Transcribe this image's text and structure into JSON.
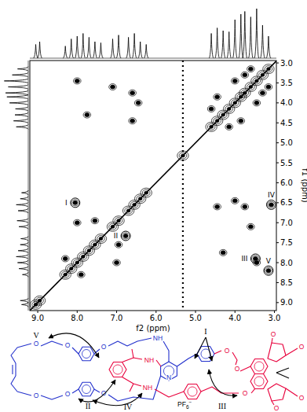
{
  "chart_data": {
    "type": "contour",
    "x_label": "f2 (ppm)",
    "y_label": "f1 (ppm)",
    "xlim": [
      9.2,
      2.95
    ],
    "ylim": [
      2.94,
      9.2
    ],
    "xticks": [
      {
        "value": 9,
        "label": "9.0"
      },
      {
        "value": 8,
        "label": "8.0"
      },
      {
        "value": 7,
        "label": "7.0"
      },
      {
        "value": 6,
        "label": "6.0"
      },
      {
        "value": 5,
        "label": "5.0"
      },
      {
        "value": 4,
        "label": "4.0"
      },
      {
        "value": 3,
        "label": "3.0"
      }
    ],
    "yticks": [
      {
        "value": 3,
        "label": "3.0"
      },
      3.5,
      {
        "value": 4,
        "label": "4.0"
      },
      4.5,
      {
        "value": 5,
        "label": "5.0"
      },
      5.5,
      {
        "value": 6,
        "label": "6.0"
      },
      6.5,
      {
        "value": 7,
        "label": "7.0"
      },
      7.5,
      {
        "value": 8,
        "label": "8.0"
      },
      8.5,
      {
        "value": 9,
        "label": "9.0"
      }
    ],
    "projection": {
      "ppm": [
        9.05,
        8.95,
        8.3,
        8.15,
        8.0,
        7.85,
        7.7,
        7.55,
        7.4,
        7.1,
        6.95,
        6.7,
        6.55,
        6.4,
        6.25,
        4.6,
        4.45,
        4.3,
        4.15,
        4.0,
        3.85,
        3.75,
        3.6,
        3.45,
        3.3,
        3.15
      ],
      "intensity": [
        25,
        30,
        22,
        35,
        40,
        45,
        38,
        30,
        28,
        35,
        42,
        38,
        45,
        30,
        25,
        45,
        55,
        50,
        48,
        70,
        80,
        85,
        75,
        90,
        60,
        40
      ]
    },
    "diagonal_peaks": [
      9.05,
      8.95,
      8.3,
      8.15,
      8.0,
      7.85,
      7.7,
      7.55,
      7.4,
      7.1,
      6.95,
      6.7,
      6.55,
      6.4,
      6.25,
      5.32,
      4.6,
      4.45,
      4.3,
      4.15,
      4.0,
      3.85,
      3.75,
      3.6,
      3.45,
      3.3,
      3.15
    ],
    "cross_peaks": {
      "f2": [
        7.9,
        8.3,
        7.0,
        8.0,
        6.95,
        7.55,
        4.45,
        6.6,
        4.0,
        6.45,
        3.75,
        6.6,
        3.6,
        7.1,
        4.3,
        7.75,
        3.85,
        4.45,
        3.45,
        4.0,
        3.3,
        3.75,
        3.15,
        3.6,
        4.6,
        4.15,
        3.45,
        8.0
      ],
      "f1": [
        8.3,
        7.9,
        8.0,
        7.0,
        7.55,
        6.95,
        6.6,
        4.45,
        6.45,
        4.0,
        6.6,
        3.75,
        7.1,
        3.6,
        7.75,
        4.3,
        4.45,
        3.85,
        4.0,
        3.45,
        3.75,
        3.3,
        3.6,
        3.15,
        4.15,
        4.6,
        8.0,
        3.45
      ]
    },
    "solvent_stripe": 5.32,
    "annotations": [
      {
        "label": "I",
        "f2": 8.05,
        "f1": 6.5
      },
      {
        "label": "II",
        "f2": 6.77,
        "f1": 7.33
      },
      {
        "label": "III",
        "f2": 3.48,
        "f1": 7.9
      },
      {
        "label": "IV",
        "f2": 3.08,
        "f1": 6.55
      },
      {
        "label": "V",
        "f2": 3.15,
        "f1": 8.2
      }
    ]
  },
  "structure": {
    "annotations": [
      "I",
      "II",
      "III",
      "IV",
      "V"
    ],
    "counterion": {
      "text": "PF",
      "sub": "6",
      "sup": "−"
    },
    "atoms": [
      "O",
      "O",
      "O",
      "O",
      "O",
      "O",
      "NH",
      "NH",
      "N",
      "O",
      "O",
      "O",
      "O",
      "O",
      "O",
      "O",
      "NH"
    ]
  }
}
